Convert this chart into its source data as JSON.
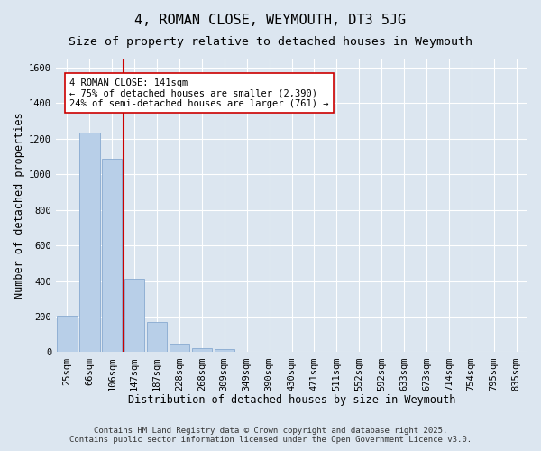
{
  "title": "4, ROMAN CLOSE, WEYMOUTH, DT3 5JG",
  "subtitle": "Size of property relative to detached houses in Weymouth",
  "xlabel": "Distribution of detached houses by size in Weymouth",
  "ylabel": "Number of detached properties",
  "bar_labels": [
    "25sqm",
    "66sqm",
    "106sqm",
    "147sqm",
    "187sqm",
    "228sqm",
    "268sqm",
    "309sqm",
    "349sqm",
    "390sqm",
    "430sqm",
    "471sqm",
    "511sqm",
    "552sqm",
    "592sqm",
    "633sqm",
    "673sqm",
    "714sqm",
    "754sqm",
    "795sqm",
    "835sqm"
  ],
  "bar_values": [
    205,
    1235,
    1085,
    415,
    170,
    50,
    25,
    20,
    0,
    0,
    0,
    0,
    0,
    0,
    0,
    0,
    0,
    0,
    0,
    0,
    0
  ],
  "bar_color": "#b8cfe8",
  "bar_edge_color": "#88aad0",
  "vline_x": 2.5,
  "vline_color": "#cc0000",
  "ylim": [
    0,
    1650
  ],
  "yticks": [
    0,
    200,
    400,
    600,
    800,
    1000,
    1200,
    1400,
    1600
  ],
  "annotation_text": "4 ROMAN CLOSE: 141sqm\n← 75% of detached houses are smaller (2,390)\n24% of semi-detached houses are larger (761) →",
  "annotation_box_color": "white",
  "annotation_box_edge": "#cc0000",
  "footer1": "Contains HM Land Registry data © Crown copyright and database right 2025.",
  "footer2": "Contains public sector information licensed under the Open Government Licence v3.0.",
  "background_color": "#dce6f0",
  "grid_color": "white",
  "title_fontsize": 11,
  "subtitle_fontsize": 9.5,
  "axis_label_fontsize": 8.5,
  "tick_fontsize": 7.5,
  "annotation_fontsize": 7.5,
  "footer_fontsize": 6.5
}
